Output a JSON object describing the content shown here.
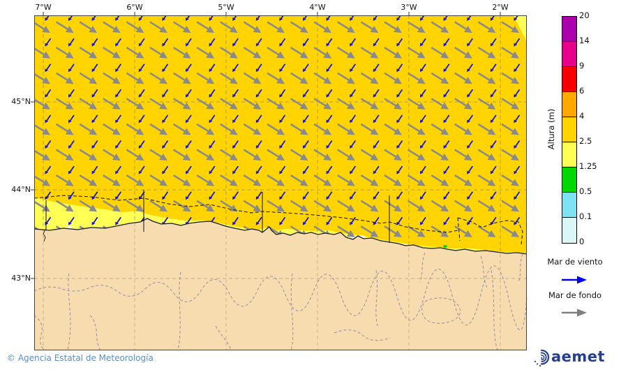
{
  "axes": {
    "lon_ticks": [
      "7°W",
      "6°W",
      "5°W",
      "4°W",
      "3°W",
      "2°W"
    ],
    "lat_ticks": [
      "45°N",
      "44°N",
      "43°N"
    ]
  },
  "colorbar": {
    "title": "Altura (m)",
    "boundary_labels_top_to_bottom": [
      "20",
      "14",
      "9",
      "6",
      "4",
      "2.5",
      "1.25",
      "0.5",
      "0.1",
      "0"
    ],
    "segment_colors_top_to_bottom": [
      "#ac00ac",
      "#e6008c",
      "#f80000",
      "#ffa800",
      "#ffd400",
      "#ffff55",
      "#00d800",
      "#7fe2f2",
      "#dbf6f6"
    ]
  },
  "legend": {
    "wind_sea_label": "Mar de viento",
    "swell_label": "Mar de fondo",
    "wind_color": "#0000ee",
    "swell_color": "#7f7f7f"
  },
  "map": {
    "sea_fill": "#ffd400",
    "coastal_band_fill": "#ffff55",
    "land_fill": "#f7dcb0",
    "green_patch_fill": "#00d800",
    "calm_patch_fill": "#ffffff",
    "map_arrow_swell_color": "#8a8a8a",
    "map_arrow_wind_color": "#1414d8",
    "arrow_field": {
      "cols": 21,
      "rows": 9,
      "swell_direction": "southeast",
      "wind_sea_direction": "southwest-small"
    }
  },
  "footer": {
    "copyright": "© Agencia Estatal de Meteorología",
    "brand": "aemet"
  }
}
